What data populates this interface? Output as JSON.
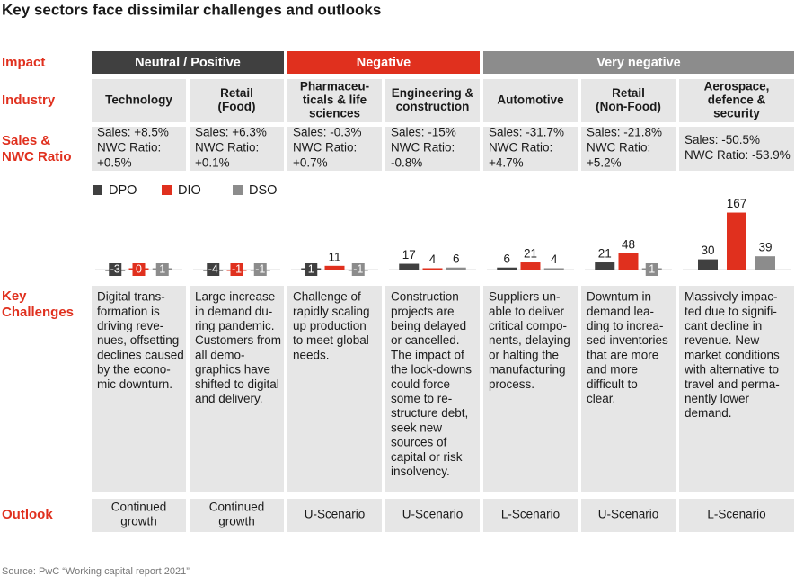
{
  "title": "Key sectors face dissimilar challenges and outlooks",
  "row_labels": {
    "impact": "Impact",
    "industry": "Industry",
    "sales": [
      "Sales &",
      "NWC Ratio"
    ],
    "challenges": [
      "Key",
      "Challenges"
    ],
    "outlook": "Outlook"
  },
  "impact_groups": [
    {
      "label": "Neutral / Positive",
      "color": "#404040",
      "span": 2
    },
    {
      "label": "Negative",
      "color": "#e0301e",
      "span": 2
    },
    {
      "label": "Very negative",
      "color": "#8c8c8c",
      "span": 3
    }
  ],
  "legend": [
    {
      "name": "DPO",
      "color": "#404040"
    },
    {
      "name": "DIO",
      "color": "#e0301e"
    },
    {
      "name": "DSO",
      "color": "#8c8c8c"
    }
  ],
  "industries": [
    {
      "name": [
        "Technology"
      ],
      "sales": [
        "Sales: +8.5%",
        "NWC Ratio:",
        "+0.5%"
      ],
      "dpo": -3,
      "dio": 0,
      "dso": 1,
      "challenges": [
        "Digital trans-",
        "formation is",
        "driving reve-",
        "nues, offsetting",
        "declines caused",
        "by the econo-",
        "mic downturn."
      ],
      "outlook": [
        "Continued",
        "growth"
      ]
    },
    {
      "name": [
        "Retail",
        "(Food)"
      ],
      "sales": [
        "Sales: +6.3%",
        "NWC Ratio:",
        "+0.1%"
      ],
      "dpo": -4,
      "dio": -1,
      "dso": -1,
      "challenges": [
        "Large increase",
        "in demand du-",
        "ring pandemic.",
        "Customers from",
        "all demo-",
        "graphics have",
        "shifted to digital",
        "and delivery."
      ],
      "outlook": [
        "Continued",
        "growth"
      ]
    },
    {
      "name": [
        "Pharmaceu-",
        "ticals & life",
        "sciences"
      ],
      "sales": [
        "Sales: -0.3%",
        "NWC Ratio:",
        "+0.7%"
      ],
      "dpo": 1,
      "dio": 11,
      "dso": -1,
      "challenges": [
        "Challenge of",
        "rapidly scaling",
        "up production",
        "to meet global",
        "needs."
      ],
      "outlook": [
        "U-Scenario"
      ]
    },
    {
      "name": [
        "Engineering &",
        "construction"
      ],
      "sales": [
        "Sales: -15%",
        "NWC Ratio:",
        "-0.8%"
      ],
      "dpo": 17,
      "dio": 4,
      "dso": 6,
      "challenges": [
        "Construction",
        "projects are",
        "being delayed",
        "or cancelled.",
        "The impact of",
        "the lock-downs",
        "could force",
        "some to re-",
        "structure debt,",
        "seek new",
        "sources of",
        "capital or risk",
        "insolvency."
      ],
      "outlook": [
        "U-Scenario"
      ]
    },
    {
      "name": [
        "Automotive"
      ],
      "sales": [
        "Sales: -31.7%",
        "NWC Ratio:",
        "+4.7%"
      ],
      "dpo": 6,
      "dio": 21,
      "dso": 4,
      "challenges": [
        "Suppliers un-",
        "able to deliver",
        "critical compo-",
        "nents, delaying",
        "or halting the",
        "manufacturing",
        "process."
      ],
      "outlook": [
        "L-Scenario"
      ]
    },
    {
      "name": [
        "Retail",
        "(Non-Food)"
      ],
      "sales": [
        "Sales: -21.8%",
        "NWC Ratio:",
        "+5.2%"
      ],
      "dpo": 21,
      "dio": 48,
      "dso": 1,
      "challenges": [
        "Downturn in",
        "demand lea-",
        "ding to increa-",
        "sed inventories",
        "that are more",
        "and more",
        "difficult to",
        "clear."
      ],
      "outlook": [
        "U-Scenario"
      ]
    },
    {
      "name": [
        "Aerospace,",
        "defence &",
        "security"
      ],
      "sales": [
        "Sales: -50.5%",
        "NWC Ratio: -53.9%"
      ],
      "dpo": 30,
      "dio": 167,
      "dso": 39,
      "challenges": [
        "Massively impac-",
        "ted due to signifi-",
        "cant decline in",
        "revenue. New",
        "market conditions",
        "with alternative to",
        "travel and perma-",
        "nently lower",
        "demand."
      ],
      "outlook": [
        "L-Scenario"
      ]
    }
  ],
  "source": "Source: PwC “Working capital report 2021”"
}
